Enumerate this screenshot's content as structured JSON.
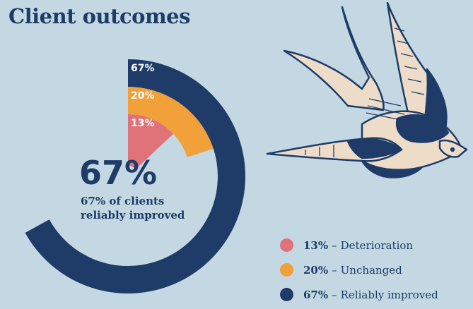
{
  "title": "Client outcomes",
  "center": {
    "value": "67%",
    "caption_line1": "67% of clients",
    "caption_line2": "reliably improved"
  },
  "chart_data": {
    "type": "radial-bar",
    "title": "Client outcomes",
    "categories": [
      "Deterioration",
      "Unchanged",
      "Reliably improved"
    ],
    "values": [
      13,
      20,
      67
    ],
    "labels": [
      "13%",
      "20%",
      "67%"
    ],
    "colors": [
      "#e07279",
      "#f2a03a",
      "#1f3c68"
    ]
  },
  "legend": [
    {
      "pct": "13%",
      "sep": "–",
      "label": "Deterioration",
      "color": "#e07279"
    },
    {
      "pct": "20%",
      "sep": "–",
      "label": "Unchanged",
      "color": "#f2a03a"
    },
    {
      "pct": "67%",
      "sep": "–",
      "label": "Reliably improved",
      "color": "#1f3c68"
    }
  ],
  "illustration": {
    "icon": "swallow-bird-icon"
  }
}
